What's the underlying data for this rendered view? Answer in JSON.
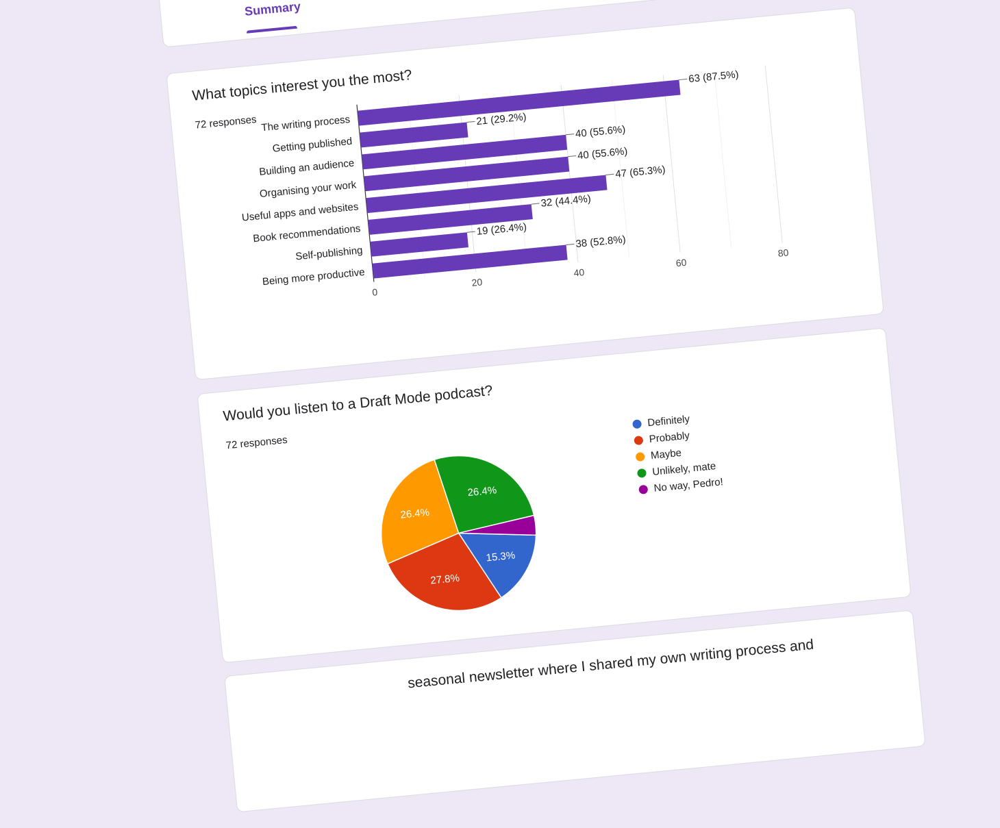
{
  "tabs": {
    "summary": "Summary"
  },
  "q1": {
    "title": "What topics interest you the most?",
    "responses": "72 responses"
  },
  "q2": {
    "title": "Would you listen to a Draft Mode podcast?",
    "responses": "72 responses"
  },
  "q3": {
    "title_fragment": "seasonal newsletter where I shared my own writing process and"
  },
  "chart_data": [
    {
      "type": "bar",
      "orientation": "horizontal",
      "categories": [
        "The writing process",
        "Getting published",
        "Building an audience",
        "Organising your work",
        "Useful apps and websites",
        "Book recommendations",
        "Self-publishing",
        "Being more productive"
      ],
      "values": [
        63,
        21,
        40,
        40,
        47,
        32,
        19,
        38
      ],
      "data_labels": [
        "63 (87.5%)",
        "21 (29.2%)",
        "40 (55.6%)",
        "40 (55.6%)",
        "47 (65.3%)",
        "32 (44.4%)",
        "19 (26.4%)",
        "38 (52.8%)"
      ],
      "xlim": [
        0,
        80
      ],
      "x_ticks": [
        0,
        20,
        40,
        60,
        80
      ],
      "grid": true,
      "color": "#673ab7"
    },
    {
      "type": "pie",
      "labels": [
        "Definitely",
        "Probably",
        "Maybe",
        "Unlikely, mate",
        "No way, Pedro!"
      ],
      "values": [
        15.3,
        27.8,
        26.4,
        26.4,
        4.1
      ],
      "slice_labels": [
        "15.3%",
        "27.8%",
        "26.4%",
        "26.4%",
        ""
      ],
      "colors": [
        "#3366cc",
        "#dc3912",
        "#ff9900",
        "#109618",
        "#990099"
      ],
      "legend": "right"
    }
  ]
}
